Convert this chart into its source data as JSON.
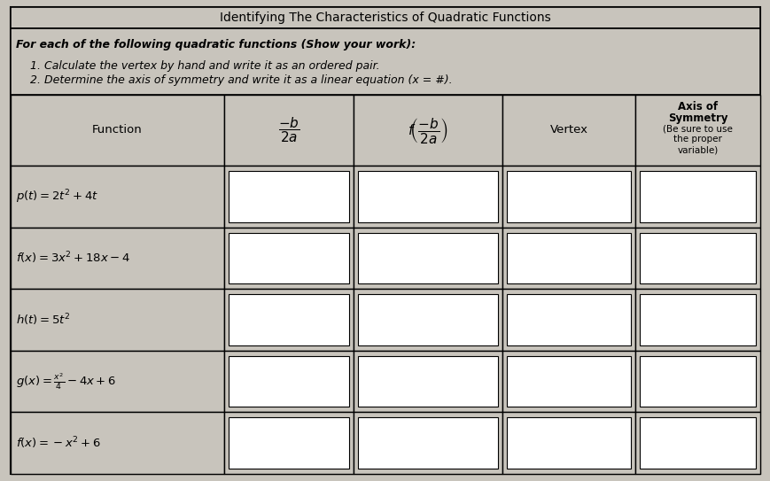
{
  "title": "Identifying The Characteristics of Quadratic Functions",
  "instructions_line1": "For each of the following quadratic functions (Show your work):",
  "instructions_line2": "1. Calculate the vertex by hand and write it as an ordered pair.",
  "instructions_line3": "2. Determine the axis of symmetry and write it as a linear equation (x = #).",
  "bg_color": "#c8c4bc",
  "cell_bg": "#ffffff",
  "border_color": "#000000",
  "title_fontsize": 10,
  "body_fontsize": 9,
  "col_ratios": [
    0.265,
    0.16,
    0.185,
    0.165,
    0.155
  ],
  "functions_math": [
    "p(t) = 2t^2 + 4t",
    "f(x) = 3x^2 + 18x - 4",
    "h(t) = 5t^2",
    "g(x) = \\frac{x^2}{4} - 4x + 6",
    "f(x) = -x^2 + 6"
  ]
}
